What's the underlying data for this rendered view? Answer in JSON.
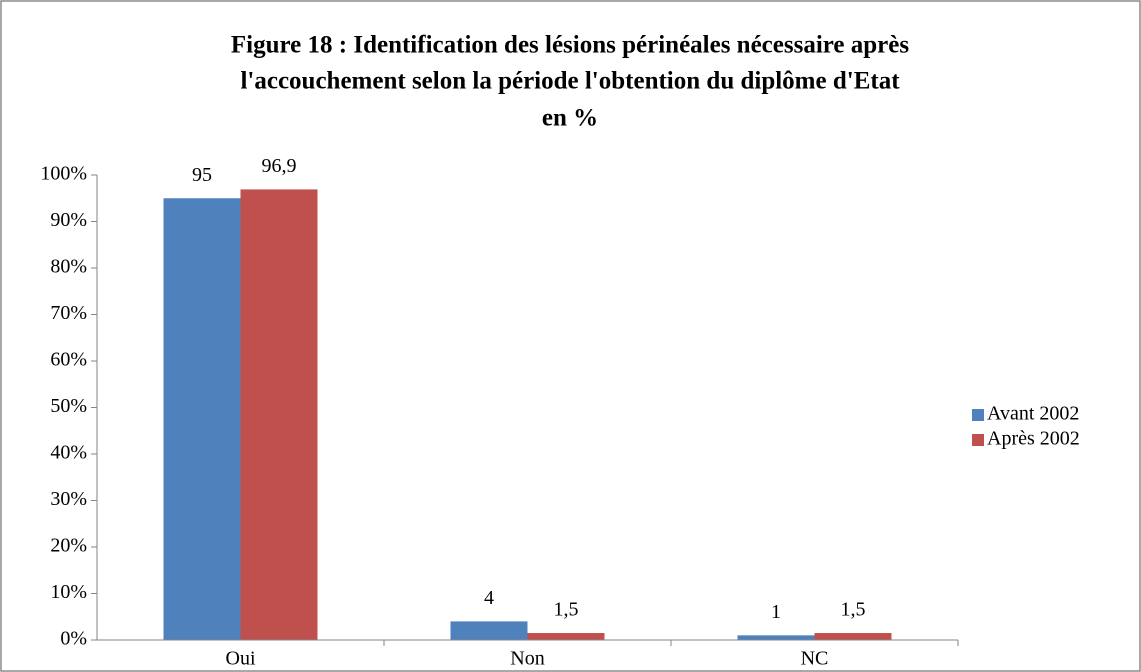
{
  "chart_data": {
    "type": "bar",
    "title": [
      "Figure 18 : Identification des lésions périnéales nécessaire après",
      "l'accouchement selon la période l'obtention du diplôme d'Etat",
      "en %"
    ],
    "categories": [
      "Oui",
      "Non",
      "NC"
    ],
    "series": [
      {
        "name": "Avant 2002",
        "color": "#4f81bd",
        "values": [
          95,
          4,
          1
        ]
      },
      {
        "name": "Après 2002",
        "color": "#c0504d",
        "values": [
          96.9,
          1.5,
          1.5
        ],
        "value_labels": [
          "96,9",
          "1,5",
          "1,5"
        ]
      }
    ],
    "ylim": [
      0,
      100
    ],
    "yticks": [
      {
        "value": 0,
        "label": "0%"
      },
      {
        "value": 10,
        "label": "10%"
      },
      {
        "value": 20,
        "label": "20%"
      },
      {
        "value": 30,
        "label": "30%"
      },
      {
        "value": 40,
        "label": "40%"
      },
      {
        "value": 50,
        "label": "50%"
      },
      {
        "value": 60,
        "label": "60%"
      },
      {
        "value": 70,
        "label": "70%"
      },
      {
        "value": 80,
        "label": "80%"
      },
      {
        "value": 90,
        "label": "90%"
      },
      {
        "value": 100,
        "label": "100%"
      }
    ],
    "legend": "right"
  }
}
